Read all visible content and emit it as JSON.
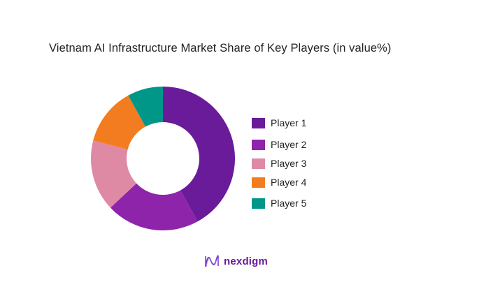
{
  "title": "Vietnam AI Infrastructure Market Share of Key Players (in value%)",
  "logo": {
    "icon": "nexdigm-wave-icon",
    "text": "nexdigm"
  },
  "chart_data": {
    "type": "pie",
    "variant": "donut",
    "title": "Vietnam AI Infrastructure Market Share of Key Players (in value%)",
    "categories": [
      "Player 1",
      "Player 2",
      "Player 3",
      "Player 4",
      "Player 5"
    ],
    "values": [
      42,
      21,
      16,
      13,
      8
    ],
    "colors": [
      "#6a1b9a",
      "#8e24aa",
      "#de8aa4",
      "#f47c20",
      "#009688"
    ],
    "start_angle": "top, clockwise",
    "legend_position": "right",
    "unit": "%"
  },
  "legend": [
    {
      "label": "Player 1",
      "color": "#6a1b9a"
    },
    {
      "label": "Player 2",
      "color": "#8e24aa"
    },
    {
      "label": "Player 3",
      "color": "#de8aa4"
    },
    {
      "label": "Player 4",
      "color": "#f47c20"
    },
    {
      "label": "Player 5",
      "color": "#009688"
    }
  ]
}
